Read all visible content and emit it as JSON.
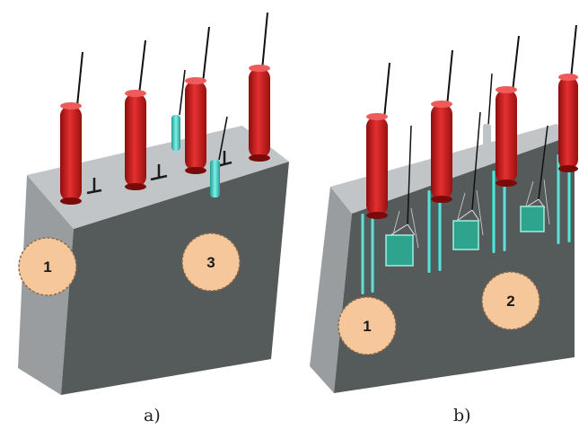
{
  "panels": [
    {
      "caption": "a)",
      "markers": [
        "1",
        "3"
      ]
    },
    {
      "caption": "b)",
      "markers": [
        "1",
        "2"
      ]
    }
  ],
  "colors": {
    "block_front": "#555a5a",
    "block_top": "#c2c5c7",
    "block_side": "#9a9d9f",
    "electrode": "#d21f1f",
    "cyan_element": "#3fd0c4",
    "marker_fill": "#f6c79b",
    "marker_border": "#8c6b4a"
  }
}
